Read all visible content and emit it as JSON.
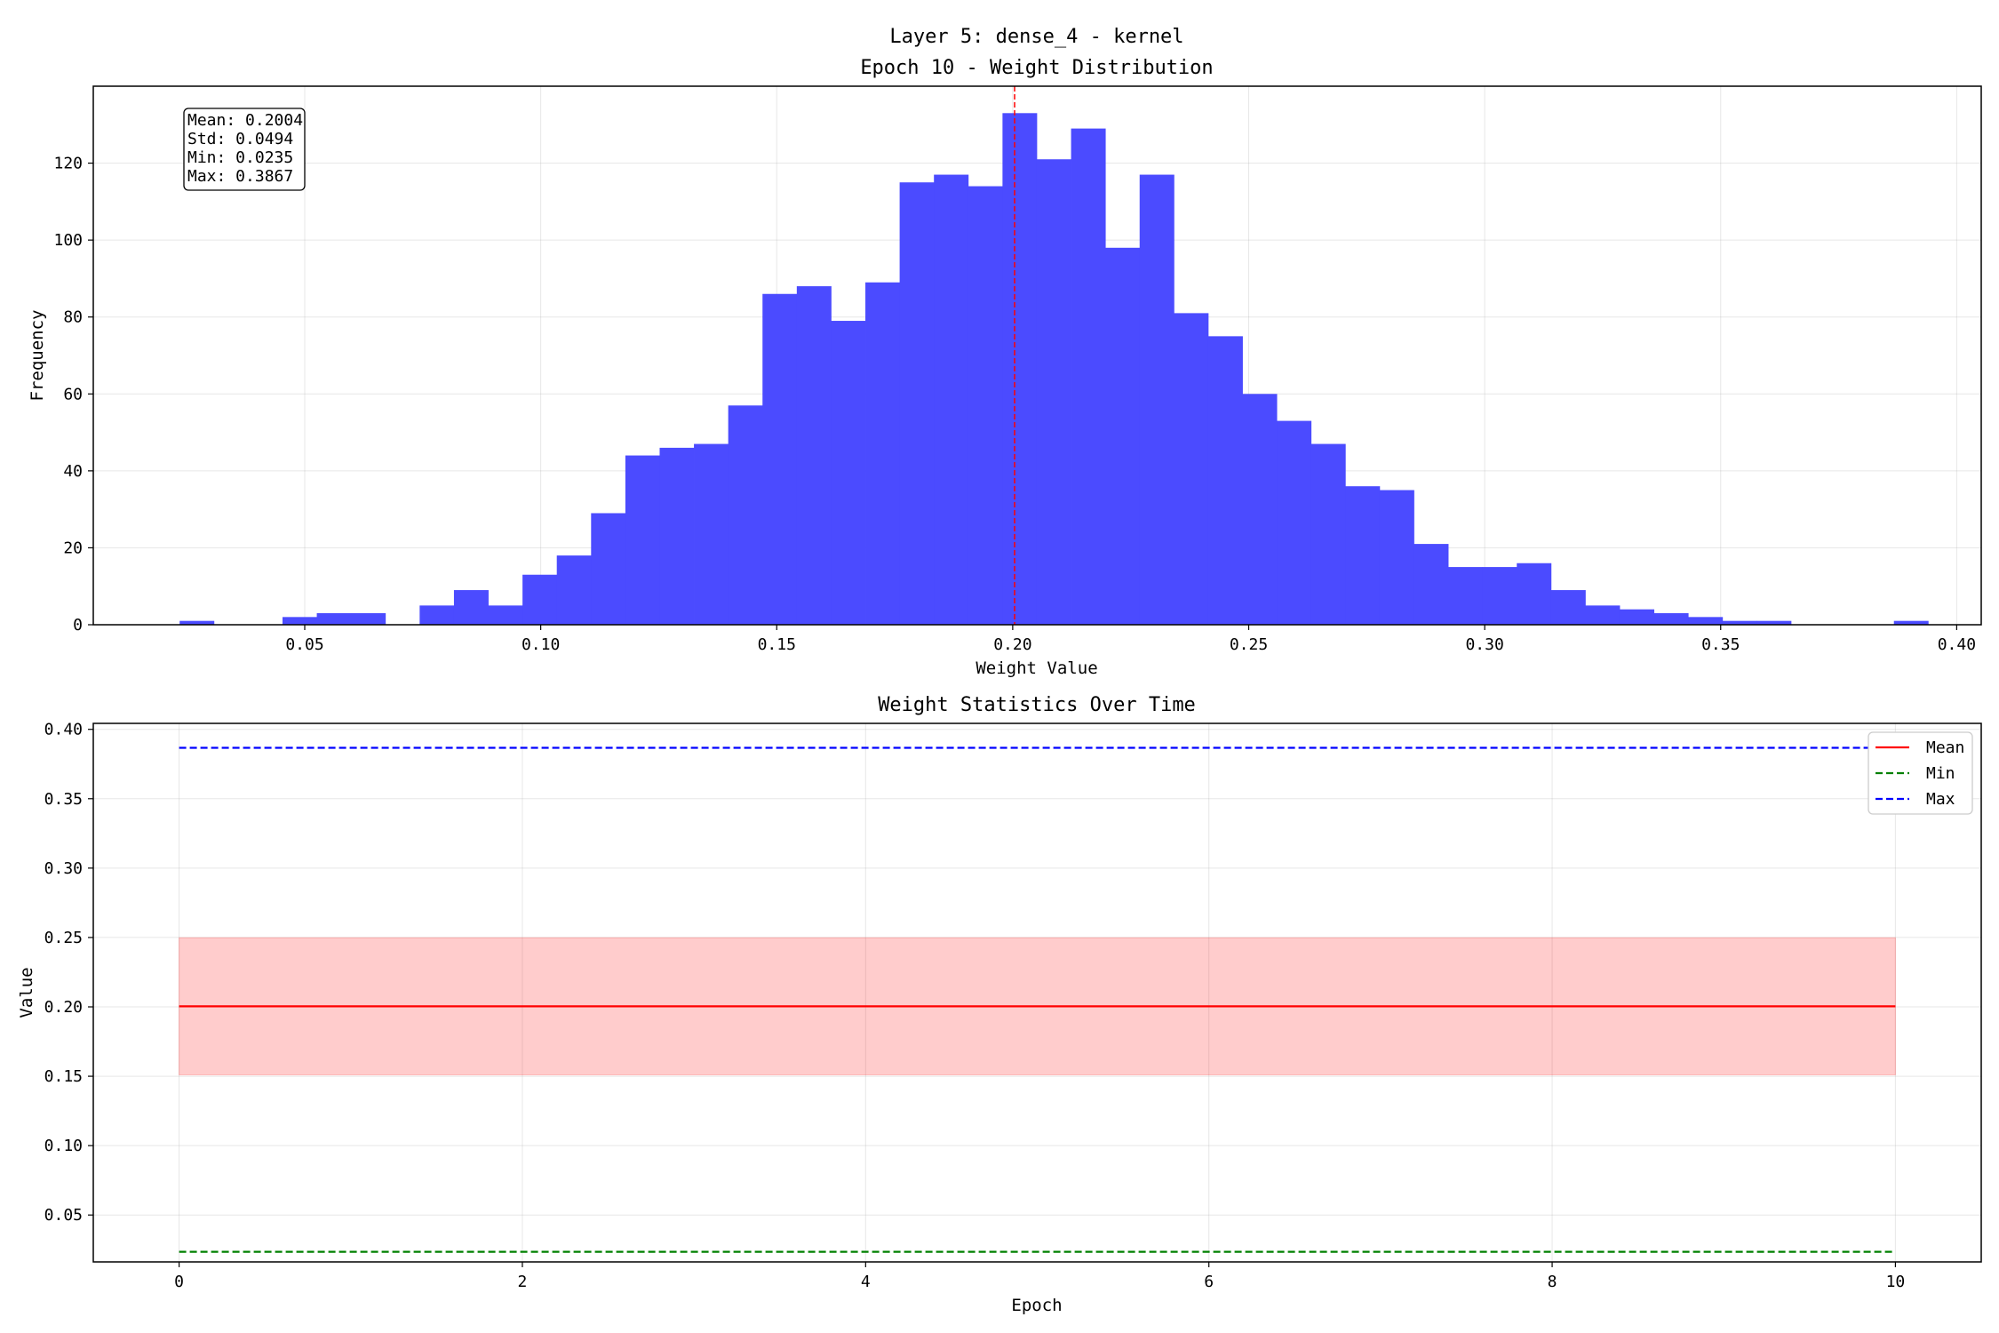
{
  "figure": {
    "suptitle": "Layer 5: dense_4 - kernel"
  },
  "chart_data": [
    {
      "type": "bar",
      "subtype": "histogram",
      "title": "Epoch 10 - Weight Distribution",
      "xlabel": "Weight Value",
      "ylabel": "Frequency",
      "xlim": [
        0.0052,
        0.4052
      ],
      "ylim": [
        0,
        140
      ],
      "xticks": [
        "0.05",
        "0.10",
        "0.15",
        "0.20",
        "0.25",
        "0.30",
        "0.35",
        "0.40"
      ],
      "yticks": [
        "0",
        "20",
        "40",
        "60",
        "80",
        "100",
        "120"
      ],
      "grid": true,
      "bar_color": "#4b4bff",
      "bins": {
        "start": 0.0235,
        "width": 0.007264,
        "counts": [
          1,
          0,
          0,
          2,
          3,
          3,
          0,
          5,
          9,
          5,
          13,
          18,
          29,
          44,
          46,
          47,
          57,
          86,
          88,
          79,
          89,
          115,
          117,
          114,
          133,
          121,
          129,
          98,
          117,
          81,
          75,
          60,
          53,
          47,
          36,
          35,
          21,
          15,
          15,
          16,
          9,
          5,
          4,
          3,
          2,
          1,
          1,
          0,
          0,
          0,
          1
        ]
      },
      "mean_line": {
        "value": 0.2004,
        "color": "#ff0000",
        "style": "dashed"
      },
      "stats_box": {
        "lines": [
          "Mean: 0.2004",
          "Std: 0.0494",
          "Min: 0.0235",
          "Max: 0.3867"
        ]
      }
    },
    {
      "type": "line",
      "title": "Weight Statistics Over Time",
      "xlabel": "Epoch",
      "ylabel": "Value",
      "xlim": [
        -0.5,
        10.5
      ],
      "ylim": [
        0.0162,
        0.4043
      ],
      "xticks": [
        "0",
        "2",
        "4",
        "6",
        "8",
        "10"
      ],
      "yticks": [
        "0.05",
        "0.10",
        "0.15",
        "0.20",
        "0.25",
        "0.30",
        "0.35",
        "0.40"
      ],
      "grid": true,
      "legend_position": "top-right",
      "x": [
        0,
        1,
        2,
        3,
        4,
        5,
        6,
        7,
        8,
        9,
        10
      ],
      "series": [
        {
          "name": "Mean",
          "color": "#ff0000",
          "style": "solid",
          "values": [
            0.2004,
            0.2004,
            0.2004,
            0.2004,
            0.2004,
            0.2004,
            0.2004,
            0.2004,
            0.2004,
            0.2004,
            0.2004
          ]
        },
        {
          "name": "Min",
          "color": "#008000",
          "style": "dashed",
          "values": [
            0.0235,
            0.0235,
            0.0235,
            0.0235,
            0.0235,
            0.0235,
            0.0235,
            0.0235,
            0.0235,
            0.0235,
            0.0235
          ]
        },
        {
          "name": "Max",
          "color": "#0000ff",
          "style": "dashed",
          "values": [
            0.3867,
            0.3867,
            0.3867,
            0.3867,
            0.3867,
            0.3867,
            0.3867,
            0.3867,
            0.3867,
            0.3867,
            0.3867
          ]
        }
      ],
      "std_band": {
        "color": "#ff0000",
        "lower": 0.151,
        "upper": 0.2498
      }
    }
  ]
}
